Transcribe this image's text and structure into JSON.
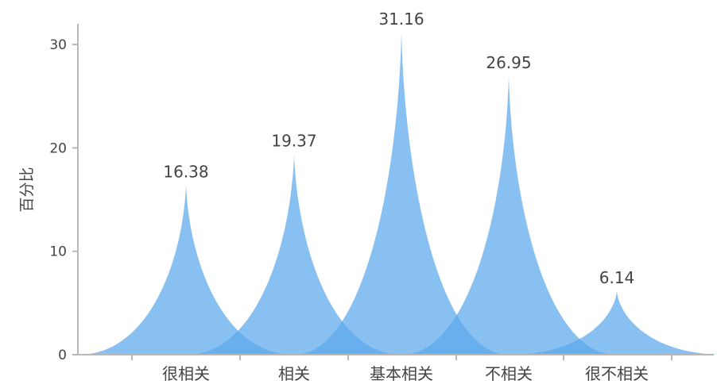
{
  "chart_data": {
    "type": "area",
    "ylabel": "百分比",
    "xlabel": "",
    "categories": [
      "很相关",
      "相关",
      "基本相关",
      "不相关",
      "很不相关"
    ],
    "values": [
      16.38,
      19.37,
      31.16,
      26.95,
      6.14
    ],
    "value_labels": [
      "16.38",
      "19.37",
      "31.16",
      "26.95",
      "6.14"
    ],
    "ylim": [
      0,
      32
    ],
    "yticks": [
      0,
      10,
      20,
      30
    ],
    "ytick_labels": [
      "0",
      "10",
      "20",
      "30"
    ],
    "grid": false,
    "legend": "none",
    "color": "#5aa7ec"
  }
}
